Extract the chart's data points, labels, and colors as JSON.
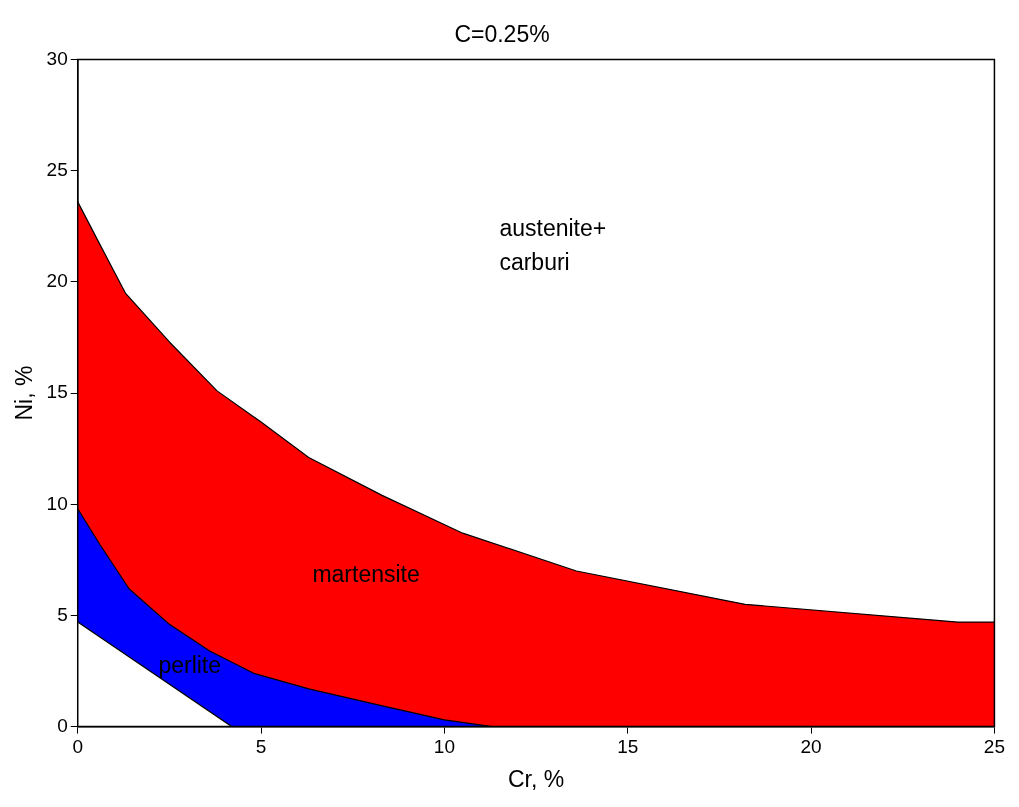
{
  "chart_data": {
    "type": "area",
    "title": "C=0.25%",
    "xlabel": "Cr, %",
    "ylabel": "Ni, %",
    "xlim": [
      0,
      25
    ],
    "xticks": [
      0,
      5,
      10,
      15,
      20,
      25
    ],
    "ylim": [
      0,
      30
    ],
    "yticks": [
      0,
      5,
      10,
      15,
      20,
      25,
      30
    ],
    "grid": false,
    "legend": false,
    "marker": "none",
    "series": [
      {
        "color": "#ff0000",
        "x": [
          0,
          0.6,
          1.3,
          2.5,
          3.8,
          5,
          6.3,
          8.3,
          10.5,
          13.6,
          18.2,
          24,
          25
        ],
        "values": [
          23.6,
          21.7,
          19.5,
          17.3,
          15.1,
          13.7,
          12.1,
          10.4,
          8.7,
          7.0,
          5.5,
          4.7,
          4.7
        ]
      },
      {
        "color": "#0000ff",
        "x": [
          0,
          0.6,
          1.4,
          2.5,
          3.6,
          4.8,
          6.3,
          8.4,
          10,
          11.3
        ],
        "values": [
          9.8,
          8.2,
          6.2,
          4.6,
          3.4,
          2.4,
          1.7,
          0.9,
          0.3,
          0
        ]
      },
      {
        "color": "#ffffff",
        "x": [
          0,
          4.2
        ],
        "values": [
          4.7,
          0
        ]
      }
    ],
    "annotations": [
      "austenite+\ncarburi",
      "martensite",
      "perlite"
    ]
  }
}
